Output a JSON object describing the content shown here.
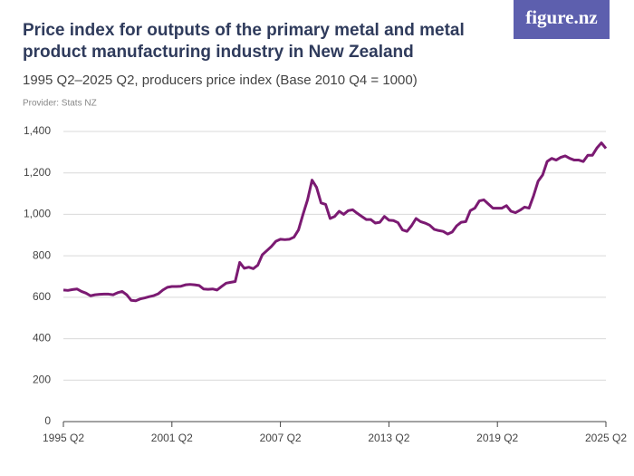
{
  "logo": "figure.nz",
  "chart_data": {
    "type": "line",
    "title": "Price index for outputs of the primary metal and metal product manufacturing industry in New Zealand",
    "subtitle": "1995 Q2–2025 Q2, producers price index (Base 2010 Q4 = 1000)",
    "provider": "Provider: Stats NZ",
    "categories": [
      "1995 Q2",
      null,
      null,
      null,
      null,
      null,
      null,
      null,
      null,
      null,
      null,
      null,
      null,
      null,
      null,
      null,
      null,
      null,
      null,
      null,
      null,
      null,
      null,
      null,
      "2001 Q2",
      null,
      null,
      null,
      null,
      null,
      null,
      null,
      null,
      null,
      null,
      null,
      null,
      null,
      null,
      null,
      null,
      null,
      null,
      null,
      null,
      null,
      null,
      null,
      "2007 Q2",
      null,
      null,
      null,
      null,
      null,
      null,
      null,
      null,
      null,
      null,
      null,
      null,
      null,
      null,
      null,
      null,
      null,
      null,
      null,
      null,
      null,
      null,
      null,
      "2013 Q2",
      null,
      null,
      null,
      null,
      null,
      null,
      null,
      null,
      null,
      null,
      null,
      null,
      null,
      null,
      null,
      null,
      null,
      null,
      null,
      null,
      null,
      null,
      null,
      "2019 Q2",
      null,
      null,
      null,
      null,
      null,
      null,
      null,
      null,
      null,
      null,
      null,
      null,
      null,
      null,
      null,
      null,
      null,
      null,
      null,
      null,
      null,
      null,
      null,
      "2025 Q2"
    ],
    "series": [
      {
        "color": "#7b1a72",
        "values": [
          635,
          633,
          637,
          640,
          628,
          620,
          607,
          612,
          614,
          615,
          615,
          612,
          622,
          628,
          612,
          585,
          583,
          592,
          597,
          603,
          608,
          617,
          635,
          648,
          652,
          652,
          653,
          660,
          662,
          660,
          657,
          640,
          638,
          640,
          635,
          652,
          668,
          672,
          676,
          768,
          740,
          745,
          738,
          755,
          805,
          825,
          845,
          870,
          880,
          878,
          880,
          890,
          925,
          1000,
          1070,
          1165,
          1130,
          1055,
          1048,
          980,
          990,
          1015,
          1000,
          1018,
          1022,
          1005,
          990,
          975,
          975,
          958,
          962,
          990,
          972,
          970,
          960,
          925,
          918,
          945,
          980,
          965,
          958,
          948,
          928,
          922,
          918,
          905,
          915,
          945,
          962,
          965,
          1018,
          1030,
          1065,
          1070,
          1050,
          1030,
          1030,
          1030,
          1042,
          1015,
          1008,
          1020,
          1035,
          1030,
          1090,
          1160,
          1190,
          1255,
          1270,
          1262,
          1275,
          1282,
          1270,
          1262,
          1262,
          1255,
          1285,
          1285,
          1320,
          1345,
          1318
        ]
      }
    ],
    "ylim": [
      0,
      1400
    ],
    "yticks": [
      0,
      200,
      400,
      600,
      800,
      {
        "value": 1000,
        "label": "1,000"
      },
      {
        "value": 1200,
        "label": "1,200"
      },
      {
        "value": 1400,
        "label": "1,400"
      }
    ],
    "grid": true
  }
}
